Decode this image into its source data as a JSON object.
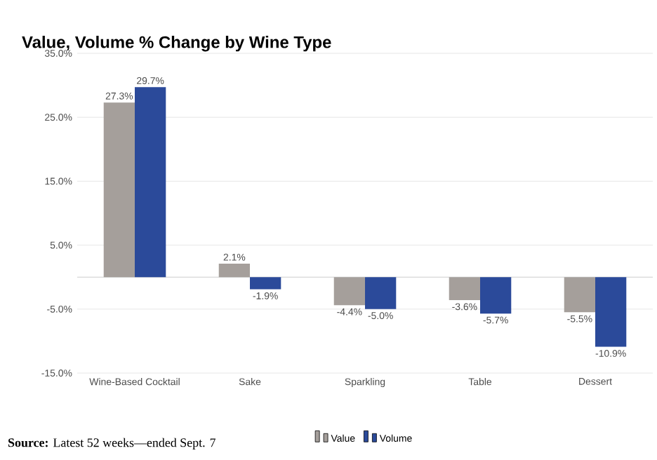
{
  "chart_data": {
    "type": "bar",
    "title": "Value, Volume % Change by Wine Type",
    "categories": [
      "Wine-Based Cocktail",
      "Sake",
      "Sparkling",
      "Table",
      "Dessert"
    ],
    "series": [
      {
        "name": "Value",
        "color": "#a59f9b",
        "values": [
          27.3,
          2.1,
          -4.4,
          -3.6,
          -5.5
        ],
        "value_labels": [
          "27.3%",
          "2.1%",
          "-4.4%",
          "-3.6%",
          "-5.5%"
        ]
      },
      {
        "name": "Volume",
        "color": "#2b4a9a",
        "values": [
          29.7,
          -1.9,
          -5.0,
          -5.7,
          -10.9
        ],
        "value_labels": [
          "29.7%",
          "-1.9%",
          "-5.0%",
          "-5.7%",
          "-10.9%"
        ]
      }
    ],
    "ylim": [
      -15,
      35
    ],
    "yticks": [
      {
        "value": -15,
        "label": "-15.0%"
      },
      {
        "value": -5,
        "label": "-5.0%"
      },
      {
        "value": 5,
        "label": "5.0%"
      },
      {
        "value": 15,
        "label": "15.0%"
      },
      {
        "value": 25,
        "label": "25.0%"
      },
      {
        "value": 35,
        "label": "35.0%"
      }
    ],
    "grid": "y",
    "legend": "bottom",
    "annotations": [
      "**Source:** Latest 52 weeks—ended Sept. 7"
    ]
  }
}
